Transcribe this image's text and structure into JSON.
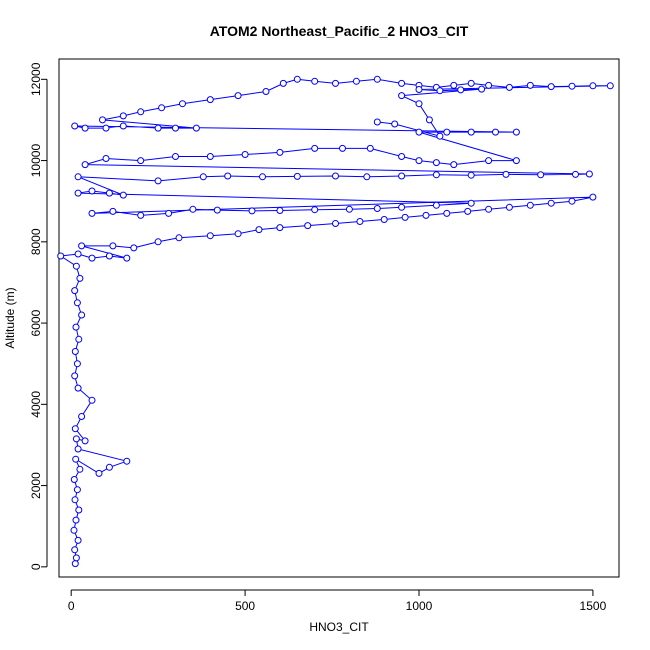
{
  "chart_data": {
    "type": "scatter",
    "title": "ATOM2 Northeast_Pacific_2 HNO3_CIT",
    "xlabel": "HNO3_CIT",
    "ylabel": "Altitude (m)",
    "xlim": [
      -35,
      1575
    ],
    "ylim": [
      -250,
      12500
    ],
    "x_ticks": [
      0,
      500,
      1000,
      1500
    ],
    "y_ticks": [
      0,
      2000,
      4000,
      6000,
      8000,
      10000,
      12000
    ],
    "grid": false,
    "legend": "none",
    "marker": "open-circle",
    "connect_points": true,
    "color": "#0000ff",
    "series": [
      {
        "values": [
          [
            12,
            80
          ],
          [
            15,
            220
          ],
          [
            10,
            420
          ],
          [
            20,
            650
          ],
          [
            8,
            900
          ],
          [
            14,
            1150
          ],
          [
            22,
            1400
          ],
          [
            11,
            1650
          ],
          [
            18,
            1900
          ],
          [
            9,
            2150
          ],
          [
            25,
            2400
          ],
          [
            13,
            2650
          ],
          [
            80,
            2300
          ],
          [
            110,
            2450
          ],
          [
            160,
            2600
          ],
          [
            20,
            2900
          ],
          [
            15,
            3150
          ],
          [
            40,
            3100
          ],
          [
            12,
            3400
          ],
          [
            30,
            3700
          ],
          [
            60,
            4100
          ],
          [
            20,
            4400
          ],
          [
            10,
            4700
          ],
          [
            18,
            5000
          ],
          [
            12,
            5300
          ],
          [
            22,
            5600
          ],
          [
            14,
            5900
          ],
          [
            30,
            6200
          ],
          [
            18,
            6500
          ],
          [
            10,
            6800
          ],
          [
            25,
            7100
          ],
          [
            15,
            7400
          ],
          [
            -30,
            7650
          ],
          [
            20,
            7700
          ],
          [
            60,
            7600
          ],
          [
            110,
            7650
          ],
          [
            160,
            7600
          ],
          [
            30,
            7900
          ],
          [
            120,
            7900
          ],
          [
            180,
            7850
          ],
          [
            250,
            8000
          ],
          [
            310,
            8100
          ],
          [
            400,
            8150
          ],
          [
            480,
            8200
          ],
          [
            540,
            8300
          ],
          [
            600,
            8350
          ],
          [
            680,
            8400
          ],
          [
            760,
            8450
          ],
          [
            830,
            8500
          ],
          [
            900,
            8550
          ],
          [
            960,
            8600
          ],
          [
            1020,
            8650
          ],
          [
            1080,
            8700
          ],
          [
            1140,
            8750
          ],
          [
            1200,
            8800
          ],
          [
            1260,
            8850
          ],
          [
            1320,
            8900
          ],
          [
            1380,
            8950
          ],
          [
            1440,
            9000
          ],
          [
            1500,
            9100
          ],
          [
            60,
            8700
          ],
          [
            120,
            8750
          ],
          [
            200,
            8650
          ],
          [
            280,
            8700
          ],
          [
            350,
            8800
          ],
          [
            420,
            8780
          ],
          [
            520,
            8760
          ],
          [
            600,
            8770
          ],
          [
            700,
            8790
          ],
          [
            800,
            8800
          ],
          [
            880,
            8820
          ],
          [
            950,
            8850
          ],
          [
            1050,
            8900
          ],
          [
            1150,
            8950
          ],
          [
            20,
            9200
          ],
          [
            60,
            9250
          ],
          [
            110,
            9200
          ],
          [
            150,
            9150
          ],
          [
            20,
            9600
          ],
          [
            250,
            9500
          ],
          [
            380,
            9600
          ],
          [
            450,
            9620
          ],
          [
            550,
            9600
          ],
          [
            650,
            9610
          ],
          [
            760,
            9620
          ],
          [
            850,
            9600
          ],
          [
            950,
            9620
          ],
          [
            1050,
            9650
          ],
          [
            1150,
            9640
          ],
          [
            1250,
            9660
          ],
          [
            1350,
            9650
          ],
          [
            1450,
            9660
          ],
          [
            1490,
            9670
          ],
          [
            40,
            9900
          ],
          [
            100,
            10050
          ],
          [
            200,
            10000
          ],
          [
            300,
            10100
          ],
          [
            400,
            10100
          ],
          [
            500,
            10150
          ],
          [
            600,
            10200
          ],
          [
            700,
            10300
          ],
          [
            780,
            10300
          ],
          [
            860,
            10300
          ],
          [
            950,
            10100
          ],
          [
            1000,
            10000
          ],
          [
            1050,
            9950
          ],
          [
            1100,
            9900
          ],
          [
            1200,
            10000
          ],
          [
            1280,
            10000
          ],
          [
            1000,
            10700
          ],
          [
            1080,
            10700
          ],
          [
            1150,
            10700
          ],
          [
            1220,
            10700
          ],
          [
            1280,
            10700
          ],
          [
            10,
            10850
          ],
          [
            40,
            10800
          ],
          [
            100,
            10800
          ],
          [
            150,
            10850
          ],
          [
            250,
            10800
          ],
          [
            300,
            10800
          ],
          [
            360,
            10800
          ],
          [
            90,
            11000
          ],
          [
            150,
            11100
          ],
          [
            200,
            11200
          ],
          [
            260,
            11300
          ],
          [
            320,
            11400
          ],
          [
            400,
            11500
          ],
          [
            480,
            11600
          ],
          [
            560,
            11700
          ],
          [
            610,
            11900
          ],
          [
            650,
            12000
          ],
          [
            700,
            11950
          ],
          [
            760,
            11900
          ],
          [
            820,
            11950
          ],
          [
            880,
            12000
          ],
          [
            950,
            11900
          ],
          [
            1000,
            11850
          ],
          [
            1050,
            11800
          ],
          [
            1100,
            11850
          ],
          [
            1150,
            11900
          ],
          [
            1200,
            11850
          ],
          [
            1260,
            11800
          ],
          [
            1320,
            11850
          ],
          [
            1380,
            11820
          ],
          [
            1440,
            11830
          ],
          [
            1500,
            11840
          ],
          [
            1550,
            11840
          ],
          [
            1000,
            11750
          ],
          [
            1060,
            11720
          ],
          [
            1120,
            11740
          ],
          [
            1180,
            11760
          ],
          [
            950,
            11600
          ],
          [
            1000,
            11400
          ],
          [
            1030,
            11000
          ],
          [
            1060,
            10600
          ],
          [
            930,
            10900
          ],
          [
            880,
            10950
          ]
        ]
      }
    ]
  }
}
